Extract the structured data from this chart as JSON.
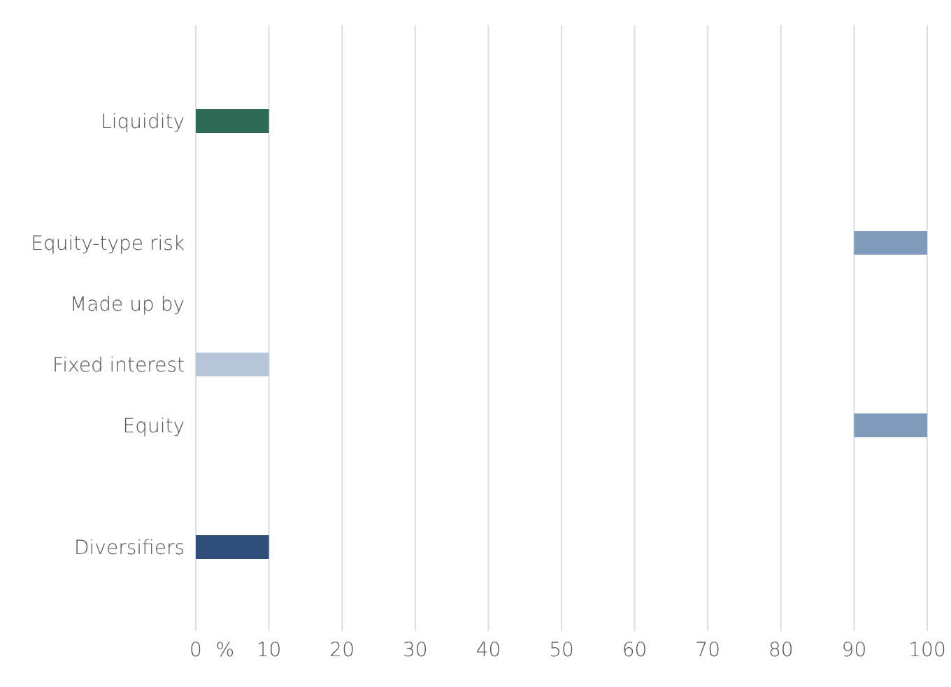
{
  "chart_data": {
    "type": "bar",
    "orientation": "horizontal",
    "categories": [
      "Liquidity",
      null,
      "Equity-type risk",
      "Made up by",
      "Fixed interest",
      "Equity",
      null,
      "Diversifiers"
    ],
    "values": [
      10,
      null,
      10,
      null,
      10,
      10,
      null,
      10
    ],
    "base": [
      0,
      null,
      90,
      null,
      0,
      90,
      null,
      0
    ],
    "colors": [
      "#2e6b57",
      "#7f9aba",
      "#7f9aba",
      "#7f9aba",
      "#b6c6d8",
      "#7f9aba",
      "#7f9aba",
      "#2f4f7a"
    ],
    "xlabel": "%",
    "xlim": [
      0,
      100
    ],
    "xticks": [
      0,
      10,
      20,
      30,
      40,
      50,
      60,
      70,
      80,
      90,
      100
    ],
    "grid": "x"
  }
}
